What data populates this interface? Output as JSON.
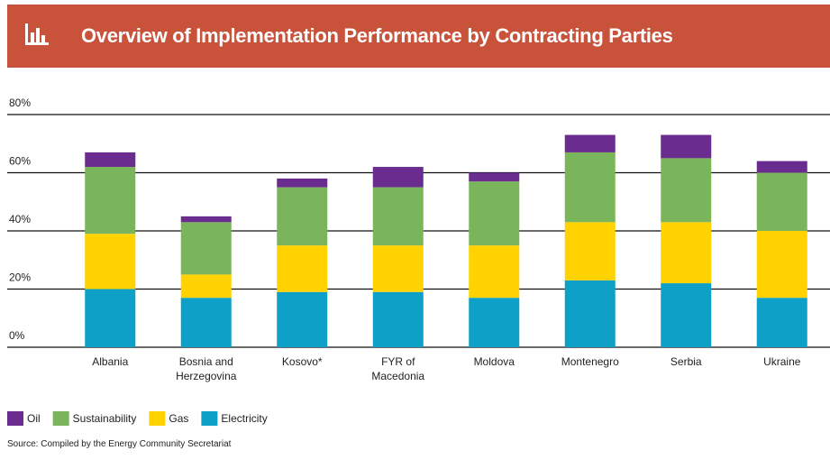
{
  "header": {
    "title": "Overview of Implementation Performance by Contracting Parties"
  },
  "chart_data": {
    "type": "bar",
    "stacked": true,
    "categories": [
      "Albania",
      "Bosnia and Herzegovina",
      "Kosovo*",
      "FYR of Macedonia",
      "Moldova",
      "Montenegro",
      "Serbia",
      "Ukraine"
    ],
    "series": [
      {
        "name": "Oil",
        "color": "#6a2c8e",
        "values": [
          5,
          2,
          3,
          7,
          3,
          6,
          8,
          4
        ]
      },
      {
        "name": "Sustainability",
        "color": "#7ab55c",
        "values": [
          23,
          18,
          20,
          20,
          22,
          24,
          22,
          20
        ]
      },
      {
        "name": "Gas",
        "color": "#ffd200",
        "values": [
          19,
          8,
          16,
          16,
          18,
          20,
          21,
          23
        ]
      },
      {
        "name": "Electricity",
        "color": "#0fa0c8",
        "values": [
          20,
          17,
          19,
          19,
          17,
          23,
          22,
          17
        ]
      }
    ],
    "ylim": [
      0,
      80
    ],
    "yticks": [
      {
        "value": 0,
        "label": "0%"
      },
      {
        "value": 20,
        "label": "20%"
      },
      {
        "value": 40,
        "label": "40%"
      },
      {
        "value": 60,
        "label": "60%"
      },
      {
        "value": 80,
        "label": "80%"
      }
    ],
    "grid": true,
    "source": "Source: Compiled by the Energy Community Secretariat"
  }
}
